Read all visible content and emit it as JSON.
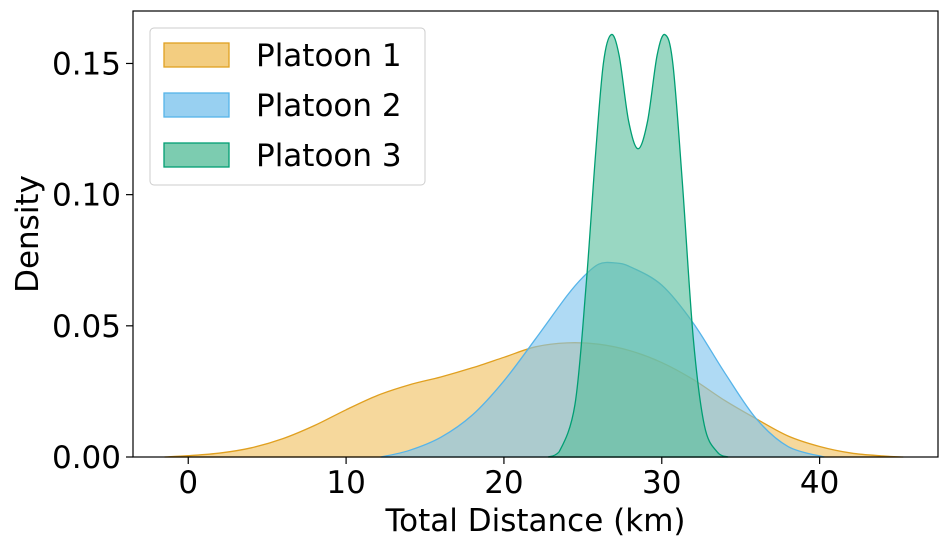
{
  "chart_data": {
    "type": "area",
    "xlabel": "Total Distance (km)",
    "ylabel": "Density",
    "xlim": [
      -3.5,
      47.5
    ],
    "ylim": [
      0,
      0.17
    ],
    "xticks": [
      0,
      10,
      20,
      30,
      40
    ],
    "yticks": [
      0.0,
      0.05,
      0.1,
      0.15
    ],
    "xtick_labels": [
      "0",
      "10",
      "20",
      "30",
      "40"
    ],
    "ytick_labels": [
      "0.00",
      "0.05",
      "0.10",
      "0.15"
    ],
    "grid": false,
    "legend_position": "top-left",
    "series": [
      {
        "name": "Platoon 1",
        "fill": "#F0C060",
        "stroke": "#E0A020",
        "x": [
          -1.5,
          0,
          2,
          4,
          6,
          8,
          10,
          12,
          14,
          16,
          18,
          20,
          22,
          24,
          26,
          28,
          30,
          32,
          34,
          36,
          38,
          40,
          42,
          44,
          45.3
        ],
        "y": [
          0.0,
          0.0005,
          0.0015,
          0.0035,
          0.007,
          0.012,
          0.018,
          0.0235,
          0.0275,
          0.0305,
          0.034,
          0.038,
          0.042,
          0.0435,
          0.043,
          0.0405,
          0.036,
          0.0295,
          0.0215,
          0.0145,
          0.008,
          0.004,
          0.0015,
          0.0004,
          0.0
        ]
      },
      {
        "name": "Platoon 2",
        "fill": "#7EC4EE",
        "stroke": "#56B4E9",
        "x": [
          12.2,
          14,
          16,
          18,
          20,
          22,
          24,
          25,
          26,
          27,
          28,
          30,
          32,
          34,
          36,
          38,
          40.3
        ],
        "y": [
          0.0,
          0.0025,
          0.0075,
          0.016,
          0.029,
          0.045,
          0.0615,
          0.0685,
          0.0735,
          0.074,
          0.0725,
          0.0655,
          0.051,
          0.032,
          0.0145,
          0.004,
          0.0
        ]
      },
      {
        "name": "Platoon 3",
        "fill": "#5BBF9C",
        "stroke": "#009E73",
        "x": [
          22.8,
          23.5,
          24.5,
          25.2,
          25.8,
          26.3,
          26.8,
          27.3,
          27.9,
          28.5,
          29.1,
          29.7,
          30.2,
          30.7,
          31.3,
          32,
          32.7,
          33.5,
          34.2
        ],
        "y": [
          0.0,
          0.002,
          0.02,
          0.065,
          0.115,
          0.15,
          0.161,
          0.153,
          0.128,
          0.1175,
          0.128,
          0.153,
          0.161,
          0.15,
          0.105,
          0.045,
          0.012,
          0.002,
          0.0
        ]
      }
    ]
  }
}
